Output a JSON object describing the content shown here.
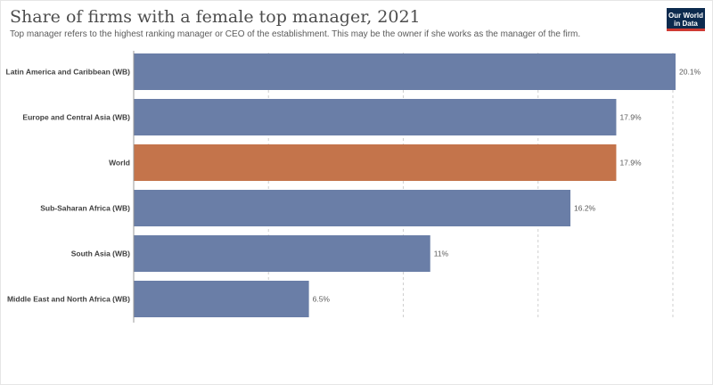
{
  "header": {
    "title": "Share of firms with a female top manager, 2021",
    "subtitle": "Top manager refers to the highest ranking manager or CEO of the establishment. This may be the owner if she works as the manager of the firm."
  },
  "logo": {
    "line1": "Our World",
    "line2": "in Data"
  },
  "colors": {
    "bar": "#6a7ea7",
    "highlight": "#c4744b",
    "grid": "#cfcfcf"
  },
  "chart_data": {
    "type": "bar",
    "orientation": "horizontal",
    "title": "Share of firms with a female top manager, 2021",
    "categories": [
      "Latin America and Caribbean (WB)",
      "Europe and Central Asia (WB)",
      "World",
      "Sub-Saharan Africa (WB)",
      "South Asia (WB)",
      "Middle East and North Africa (WB)"
    ],
    "values": [
      20.1,
      17.9,
      17.9,
      16.2,
      11,
      6.5
    ],
    "value_labels": [
      "20.1%",
      "17.9%",
      "17.9%",
      "16.2%",
      "11%",
      "6.5%"
    ],
    "highlight": "World",
    "unit": "%",
    "xlim": [
      0,
      20
    ],
    "grid_values": [
      5,
      10,
      15,
      20
    ],
    "grid": true
  }
}
